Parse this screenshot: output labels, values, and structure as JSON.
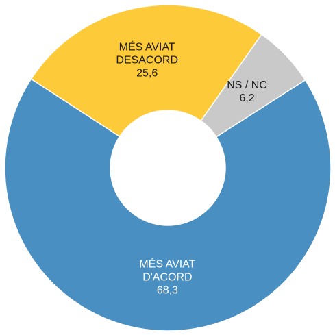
{
  "chart_data": {
    "type": "donut",
    "categories": [
      "MÉS AVIAT D'ACORD",
      "MÉS AVIAT DESACORD",
      "NS / NC"
    ],
    "values": [
      68.3,
      25.6,
      6.2
    ],
    "value_labels": [
      "68,3",
      "25,6",
      "6,2"
    ],
    "colors": [
      "#4a8fc2",
      "#fdca3a",
      "#c9c9c9"
    ],
    "label_colors": [
      "#ffffff",
      "#1a1a1a",
      "#1a1a1a"
    ]
  }
}
